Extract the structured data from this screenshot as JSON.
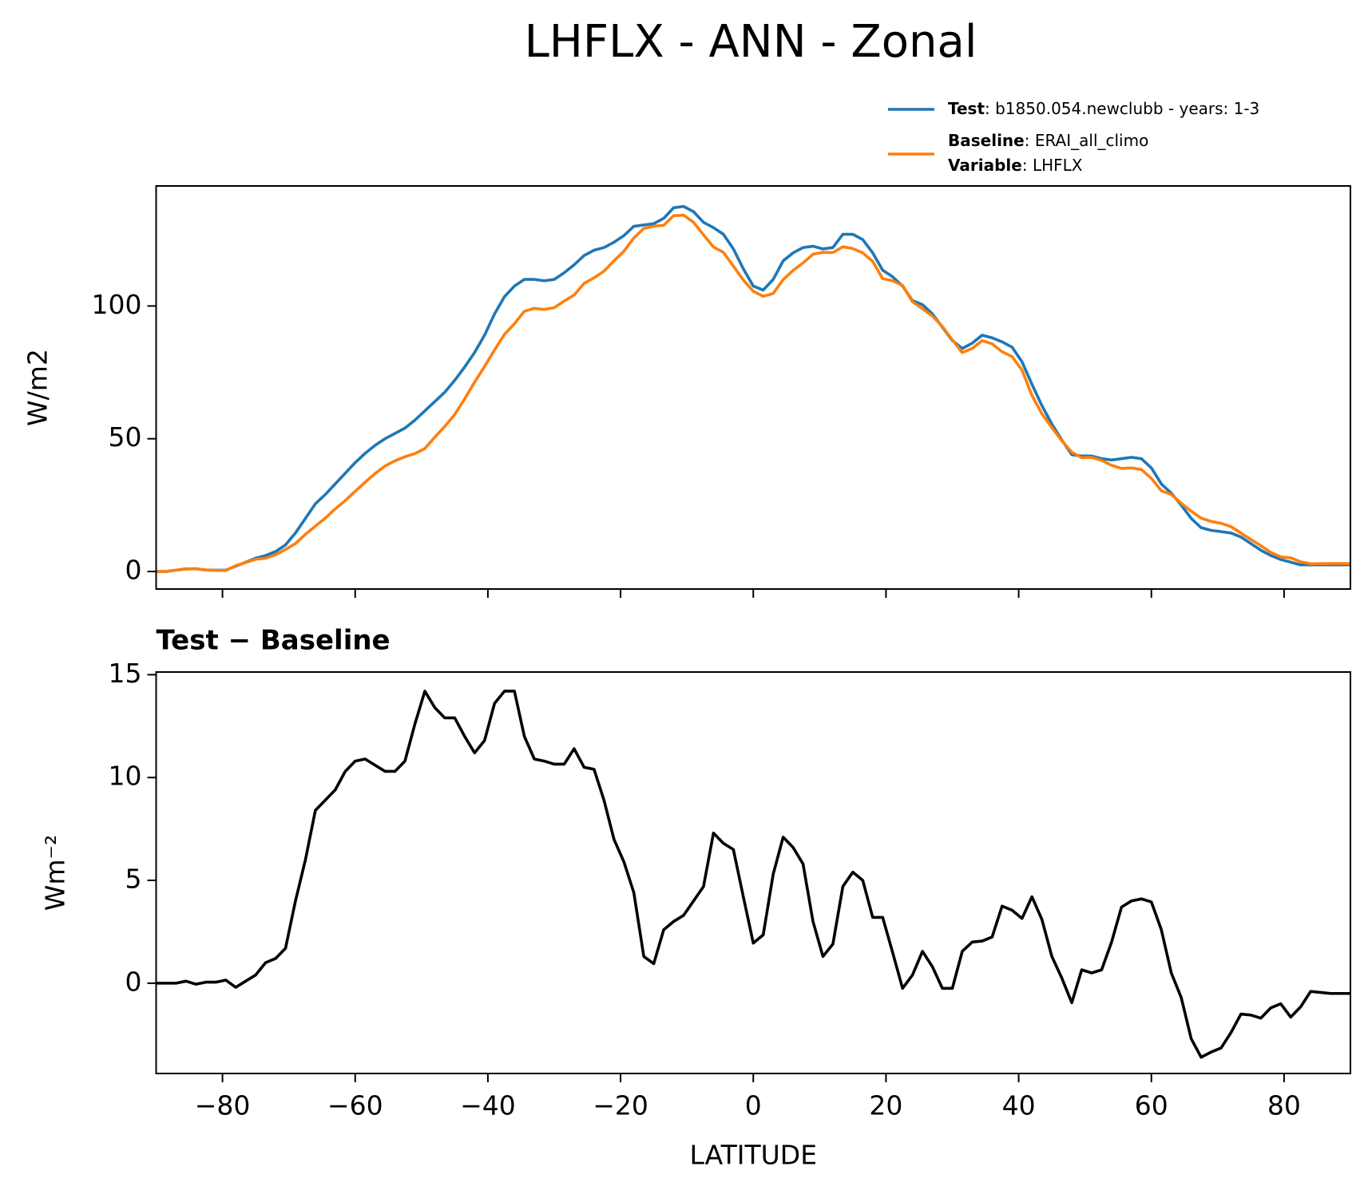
{
  "title": "LHFLX - ANN - Zonal",
  "chart_data": [
    {
      "type": "line",
      "ylabel": "W/m2",
      "x": [
        -90,
        -88.5,
        -87,
        -85.5,
        -84,
        -82.5,
        -81,
        -79.5,
        -78,
        -76.5,
        -75,
        -73.5,
        -72,
        -70.5,
        -69,
        -67.5,
        -66,
        -64.5,
        -63,
        -61.5,
        -60,
        -58.5,
        -57,
        -55.5,
        -54,
        -52.5,
        -51,
        -49.5,
        -48,
        -46.5,
        -45,
        -43.5,
        -42,
        -40.5,
        -39,
        -37.5,
        -36,
        -34.5,
        -33,
        -31.5,
        -30,
        -28.5,
        -27,
        -25.5,
        -24,
        -22.5,
        -21,
        -19.5,
        -18,
        -16.5,
        -15,
        -13.5,
        -12,
        -10.5,
        -9,
        -7.5,
        -6,
        -4.5,
        -3,
        -1.5,
        0,
        1.5,
        3,
        4.5,
        6,
        7.5,
        9,
        10.5,
        12,
        13.5,
        15,
        16.5,
        18,
        19.5,
        21,
        22.5,
        24,
        25.5,
        27,
        28.5,
        30,
        31.5,
        33,
        34.5,
        36,
        37.5,
        39,
        40.5,
        42,
        43.5,
        45,
        46.5,
        48,
        49.5,
        51,
        52.5,
        54,
        55.5,
        57,
        58.5,
        60,
        61.5,
        63,
        64.5,
        66,
        67.5,
        69,
        70.5,
        72,
        73.5,
        75,
        76.5,
        78,
        79.5,
        81,
        82.5,
        84,
        85.5,
        87,
        88.5,
        90
      ],
      "series": [
        {
          "name": "Test",
          "description": ": b1850.054.newclubb - years: 1-3",
          "color": "#1f77b4",
          "values": [
            0,
            0,
            0.5,
            1,
            1,
            0.6,
            0.5,
            0.5,
            2,
            3.5,
            5,
            6,
            7.5,
            10,
            14.5,
            20,
            25.5,
            29,
            33,
            37,
            41,
            44.5,
            47.5,
            50,
            52,
            54,
            57,
            60.5,
            64,
            67.5,
            72,
            77,
            82.5,
            89,
            97,
            103.5,
            107.5,
            110,
            110,
            109.5,
            110,
            112.5,
            115.5,
            119,
            121,
            122,
            124,
            126.5,
            130,
            130.5,
            131,
            133,
            137,
            137.5,
            135.5,
            131.5,
            129.5,
            127,
            121.5,
            114,
            107.5,
            106,
            110,
            117,
            120,
            122,
            122.5,
            121.5,
            122,
            127,
            127,
            125,
            120,
            113.5,
            111,
            107.5,
            102,
            100.5,
            97,
            92,
            87,
            84,
            86,
            89,
            88,
            86.5,
            84.5,
            79,
            70.5,
            62.5,
            55.5,
            49.5,
            44,
            43.5,
            43.5,
            42.5,
            42,
            42.5,
            43,
            42.5,
            39,
            33,
            29.5,
            25,
            20,
            16.5,
            15.5,
            15,
            14.5,
            13,
            10.5,
            8,
            6,
            4.5,
            3.5,
            2.5,
            2.5,
            2.5,
            2.5,
            2.5,
            2.5
          ]
        },
        {
          "name": "Baseline",
          "description": ": ERAI_all_climo",
          "color": "#ff7f0e",
          "values": [
            0,
            0,
            0.5,
            0.9,
            1.05,
            0.55,
            0.45,
            0.35,
            2.2,
            3.4,
            4.6,
            5,
            6.3,
            8.3,
            10.5,
            14,
            17.1,
            20.1,
            23.6,
            26.7,
            30.2,
            33.6,
            36.9,
            39.7,
            41.7,
            43.2,
            44.4,
            46.3,
            50.6,
            54.6,
            59.1,
            65,
            71.3,
            77.2,
            83.4,
            89.3,
            93.3,
            98,
            99.1,
            98.7,
            99.35,
            101.85,
            104.1,
            108.5,
            110.6,
            113.1,
            117,
            120.6,
            125.6,
            129.2,
            130.05,
            130.4,
            134,
            134.2,
            131.5,
            126.8,
            122.2,
            120.2,
            115,
            109.8,
            105.55,
            103.65,
            104.7,
            109.9,
            113.4,
            116.2,
            119.5,
            120.2,
            120.1,
            122.3,
            121.6,
            120,
            116.8,
            110.3,
            109.5,
            107.75,
            101.6,
            98.95,
            96.2,
            92.25,
            87.25,
            82.45,
            84,
            86.95,
            85.75,
            82.75,
            80.95,
            75.85,
            66.3,
            59.4,
            54.2,
            49.25,
            44.95,
            42.85,
            43,
            41.85,
            40,
            38.8,
            39,
            38.4,
            35.05,
            30.4,
            29,
            25.7,
            22.7,
            20.1,
            18.85,
            18.15,
            16.9,
            14.5,
            12.05,
            9.7,
            7.2,
            5.5,
            5.15,
            3.65,
            2.9,
            2.95,
            3,
            3,
            3
          ]
        }
      ],
      "legend_extra": {
        "name": "Variable",
        "description": ": LHFLX"
      },
      "xlim": [
        -90,
        90
      ],
      "xticks": [
        -80,
        -60,
        -40,
        -20,
        0,
        20,
        40,
        60,
        80
      ],
      "ylim": [
        -6.6,
        145.2
      ],
      "yticks": [
        0,
        50,
        100
      ]
    },
    {
      "type": "line",
      "title": "Test − Baseline",
      "ylabel": "Wm⁻²",
      "xlabel": "LATITUDE",
      "color": "#000000",
      "x": [
        -90,
        -88.5,
        -87,
        -85.5,
        -84,
        -82.5,
        -81,
        -79.5,
        -78,
        -76.5,
        -75,
        -73.5,
        -72,
        -70.5,
        -69,
        -67.5,
        -66,
        -64.5,
        -63,
        -61.5,
        -60,
        -58.5,
        -57,
        -55.5,
        -54,
        -52.5,
        -51,
        -49.5,
        -48,
        -46.5,
        -45,
        -43.5,
        -42,
        -40.5,
        -39,
        -37.5,
        -36,
        -34.5,
        -33,
        -31.5,
        -30,
        -28.5,
        -27,
        -25.5,
        -24,
        -22.5,
        -21,
        -19.5,
        -18,
        -16.5,
        -15,
        -13.5,
        -12,
        -10.5,
        -9,
        -7.5,
        -6,
        -4.5,
        -3,
        -1.5,
        0,
        1.5,
        3,
        4.5,
        6,
        7.5,
        9,
        10.5,
        12,
        13.5,
        15,
        16.5,
        18,
        19.5,
        21,
        22.5,
        24,
        25.5,
        27,
        28.5,
        30,
        31.5,
        33,
        34.5,
        36,
        37.5,
        39,
        40.5,
        42,
        43.5,
        45,
        46.5,
        48,
        49.5,
        51,
        52.5,
        54,
        55.5,
        57,
        58.5,
        60,
        61.5,
        63,
        64.5,
        66,
        67.5,
        69,
        70.5,
        72,
        73.5,
        75,
        76.5,
        78,
        79.5,
        81,
        82.5,
        84,
        85.5,
        87,
        88.5,
        90
      ],
      "values": [
        0,
        0,
        0,
        0.1,
        -0.05,
        0.05,
        0.05,
        0.15,
        -0.2,
        0.1,
        0.4,
        1.0,
        1.2,
        1.7,
        4.0,
        6.0,
        8.4,
        8.9,
        9.4,
        10.3,
        10.8,
        10.9,
        10.6,
        10.3,
        10.3,
        10.8,
        12.6,
        14.2,
        13.4,
        12.9,
        12.9,
        12,
        11.2,
        11.8,
        13.6,
        14.2,
        14.2,
        12,
        10.9,
        10.8,
        10.65,
        10.65,
        11.4,
        10.5,
        10.4,
        8.9,
        7,
        5.9,
        4.4,
        1.3,
        0.95,
        2.6,
        3.0,
        3.3,
        4.0,
        4.7,
        7.3,
        6.8,
        6.5,
        4.2,
        1.95,
        2.35,
        5.3,
        7.1,
        6.6,
        5.8,
        3.0,
        1.3,
        1.9,
        4.7,
        5.4,
        5.0,
        3.2,
        3.2,
        1.5,
        -0.25,
        0.4,
        1.55,
        0.8,
        -0.25,
        -0.25,
        1.55,
        2.0,
        2.05,
        2.25,
        3.75,
        3.55,
        3.15,
        4.2,
        3.1,
        1.3,
        0.25,
        -0.95,
        0.65,
        0.5,
        0.65,
        2.0,
        3.7,
        4.0,
        4.1,
        3.95,
        2.6,
        0.5,
        -0.7,
        -2.7,
        -3.6,
        -3.35,
        -3.15,
        -2.4,
        -1.5,
        -1.55,
        -1.7,
        -1.2,
        -1.0,
        -1.65,
        -1.15,
        -0.4,
        -0.45,
        -0.5,
        -0.5,
        -0.5
      ],
      "xlim": [
        -90,
        90
      ],
      "xticks": [
        {
          "value": -80,
          "label": "−80"
        },
        {
          "value": -60,
          "label": "−60"
        },
        {
          "value": -40,
          "label": "−40"
        },
        {
          "value": -20,
          "label": "−20"
        },
        0,
        20,
        40,
        60,
        80
      ],
      "ylim": [
        -4.39,
        15.13
      ],
      "yticks": [
        0,
        5,
        10,
        15
      ]
    }
  ]
}
